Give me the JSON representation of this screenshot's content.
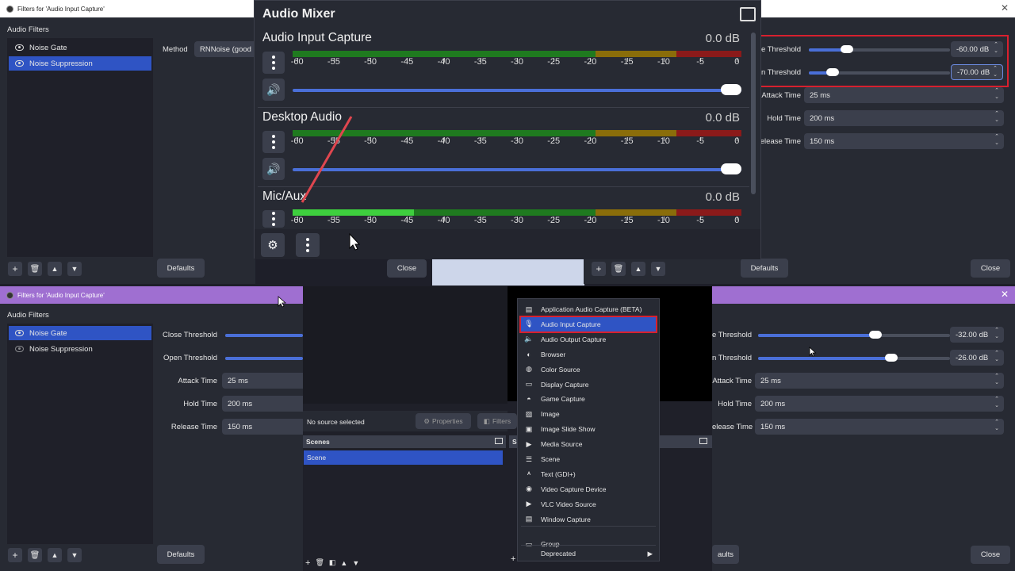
{
  "win1": {
    "title": "Filters for 'Audio Input Capture'",
    "section": "Audio Filters",
    "filters": [
      {
        "label": "Noise Gate",
        "selected": false
      },
      {
        "label": "Noise Suppression",
        "selected": true
      }
    ],
    "method_label": "Method",
    "method_value": "RNNoise (good",
    "defaults": "Defaults",
    "close": "Close"
  },
  "win2": {
    "rows": [
      {
        "label": "e Threshold",
        "value": "-60.00 dB",
        "slider_pct": 0.25
      },
      {
        "label": "n Threshold",
        "value": "-70.00 dB",
        "slider_pct": 0.15
      },
      {
        "label": "Attack Time",
        "value": "25 ms"
      },
      {
        "label": "Hold Time",
        "value": "200 ms"
      },
      {
        "label": "elease Time",
        "value": "150 ms"
      }
    ],
    "defaults": "Defaults",
    "close": "Close"
  },
  "mixer": {
    "title": "Audio Mixer",
    "channels": [
      {
        "name": "Audio Input Capture",
        "db": "0.0 dB"
      },
      {
        "name": "Desktop Audio",
        "db": "0.0 dB"
      },
      {
        "name": "Mic/Aux",
        "db": "0.0 dB"
      }
    ],
    "scale": [
      "-60",
      "-55",
      "-50",
      "-45",
      "-40",
      "-35",
      "-30",
      "-25",
      "-20",
      "-15",
      "-10",
      "-5",
      "0"
    ]
  },
  "win3": {
    "title": "Filters for 'Audio Input Capture'",
    "section": "Audio Filters",
    "filters": [
      {
        "label": "Noise Gate",
        "selected": true
      },
      {
        "label": "Noise Suppression",
        "selected": false
      }
    ],
    "rows": [
      {
        "label": "Close Threshold"
      },
      {
        "label": "Open Threshold"
      },
      {
        "label": "Attack Time",
        "value": "25 ms"
      },
      {
        "label": "Hold Time",
        "value": "200 ms"
      },
      {
        "label": "Release Time",
        "value": "150 ms"
      }
    ],
    "defaults": "Defaults"
  },
  "obs": {
    "no_source": "No source selected",
    "properties": "Properties",
    "filters": "Filters",
    "scenes_header": "Scenes",
    "scene_item": "Scene",
    "sources_header": "So"
  },
  "menu": {
    "items": [
      {
        "label": "Application Audio Capture (BETA)",
        "icon": "app-audio-icon"
      },
      {
        "label": "Audio Input Capture",
        "icon": "mic-icon",
        "selected": true
      },
      {
        "label": "Audio Output Capture",
        "icon": "speaker-icon"
      },
      {
        "label": "Browser",
        "icon": "globe-icon"
      },
      {
        "label": "Color Source",
        "icon": "palette-icon"
      },
      {
        "label": "Display Capture",
        "icon": "monitor-icon"
      },
      {
        "label": "Game Capture",
        "icon": "gamepad-icon"
      },
      {
        "label": "Image",
        "icon": "image-icon"
      },
      {
        "label": "Image Slide Show",
        "icon": "slideshow-icon"
      },
      {
        "label": "Media Source",
        "icon": "play-icon"
      },
      {
        "label": "Scene",
        "icon": "list-icon"
      },
      {
        "label": "Text (GDI+)",
        "icon": "text-icon"
      },
      {
        "label": "Video Capture Device",
        "icon": "camera-icon"
      },
      {
        "label": "VLC Video Source",
        "icon": "play-icon"
      },
      {
        "label": "Window Capture",
        "icon": "window-icon"
      }
    ],
    "group": "Group",
    "deprecated": "Deprecated"
  },
  "win4": {
    "rows": [
      {
        "label": "e Threshold",
        "value": "-32.00 dB",
        "slider_pct": 0.61
      },
      {
        "label": "n Threshold",
        "value": "-26.00 dB",
        "slider_pct": 0.69
      },
      {
        "label": "Attack Time",
        "value": "25 ms"
      },
      {
        "label": "Hold Time",
        "value": "200 ms"
      },
      {
        "label": "elease Time",
        "value": "150 ms"
      }
    ],
    "defaults": "aults",
    "close": "Close"
  },
  "colors": {
    "accent": "#2f54c4",
    "titlebar": "#9f6fd1",
    "highlight": "#d8202e",
    "meter_green": "#1f7a1f",
    "meter_yellow": "#8a6d0a",
    "meter_red": "#8b1a1a"
  }
}
